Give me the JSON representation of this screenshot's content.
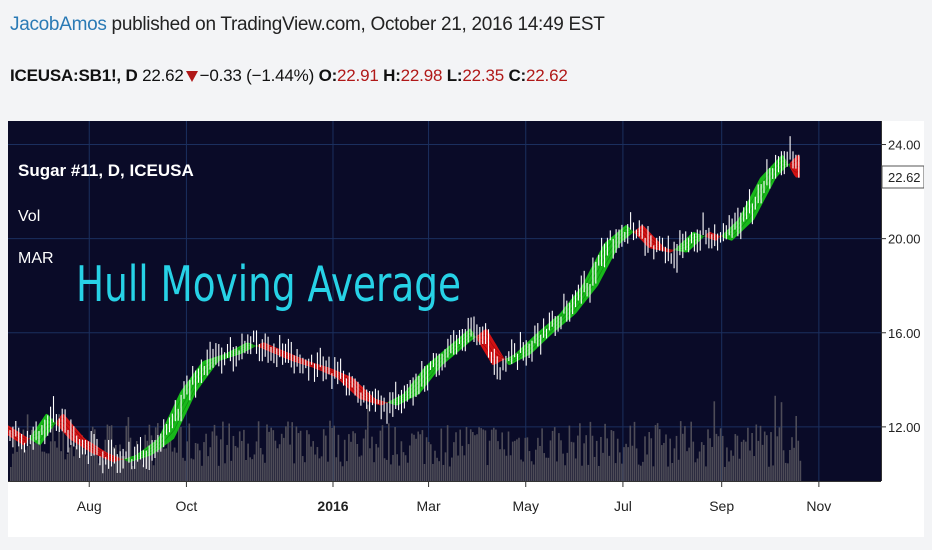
{
  "header": {
    "author": "JacobAmos",
    "published_text": " published on TradingView.com, October 21, 2016 14:49 EST"
  },
  "quote": {
    "symbol": "ICEUSA:SB1!, D",
    "last": "22.62",
    "change": "−0.33 (−1.44%)",
    "open_label": "O:",
    "open": "22.91",
    "high_label": "H:",
    "high": "22.98",
    "low_label": "L:",
    "low": "22.35",
    "close_label": "C:",
    "close": "22.62"
  },
  "legend": {
    "title": "Sugar #11, D, ICEUSA",
    "vol": "Vol",
    "mar": "MAR"
  },
  "overlay_text": "Hull Moving Average",
  "colors": {
    "background": "#0a0b28",
    "grid": "#1b2f5e",
    "bull": "#19c219",
    "bear": "#dd1313",
    "volume": "#4e4c58",
    "price": "#ffffff",
    "overlay": "#27d2e6"
  },
  "chart_data": {
    "type": "line",
    "x_ticks": [
      "Aug",
      "Oct",
      "2016",
      "Mar",
      "May",
      "Jul",
      "Sep",
      "Nov"
    ],
    "y_ticks": [
      "24.00",
      "20.00",
      "16.00",
      "12.00"
    ],
    "y_tick_values": [
      24,
      20,
      16,
      12
    ],
    "last_price_label": "22.62",
    "last_price": 22.62,
    "ylim": [
      9.7,
      25.0
    ],
    "xlim": [
      "2015-06-11",
      "2016-12-10"
    ],
    "series": [
      {
        "x": [
          "2015-06-11",
          "2015-06-25",
          "2015-07-09",
          "2015-07-23",
          "2015-08-06",
          "2015-08-20",
          "2015-09-03",
          "2015-09-17",
          "2015-10-01",
          "2015-10-15",
          "2015-10-29",
          "2015-11-12",
          "2015-11-26",
          "2015-12-10",
          "2015-12-24",
          "2016-01-07",
          "2016-01-21",
          "2016-02-04",
          "2016-02-18",
          "2016-03-03",
          "2016-03-17",
          "2016-03-31",
          "2016-04-14",
          "2016-04-28",
          "2016-05-12",
          "2016-05-26",
          "2016-06-09",
          "2016-06-23",
          "2016-07-07",
          "2016-07-21",
          "2016-08-04",
          "2016-08-18",
          "2016-09-01",
          "2016-09-15",
          "2016-09-29",
          "2016-10-13",
          "2016-10-21"
        ],
        "values": [
          11.8,
          11.2,
          12.6,
          11.5,
          10.9,
          10.5,
          10.8,
          11.5,
          13.5,
          14.8,
          15.1,
          15.6,
          15.2,
          14.8,
          14.5,
          14.1,
          13.2,
          12.9,
          13.4,
          14.6,
          15.4,
          16.2,
          14.6,
          15.1,
          16.0,
          16.8,
          18.0,
          19.8,
          20.6,
          19.6,
          19.4,
          20.3,
          19.9,
          20.8,
          22.6,
          23.6,
          22.6
        ]
      }
    ]
  }
}
